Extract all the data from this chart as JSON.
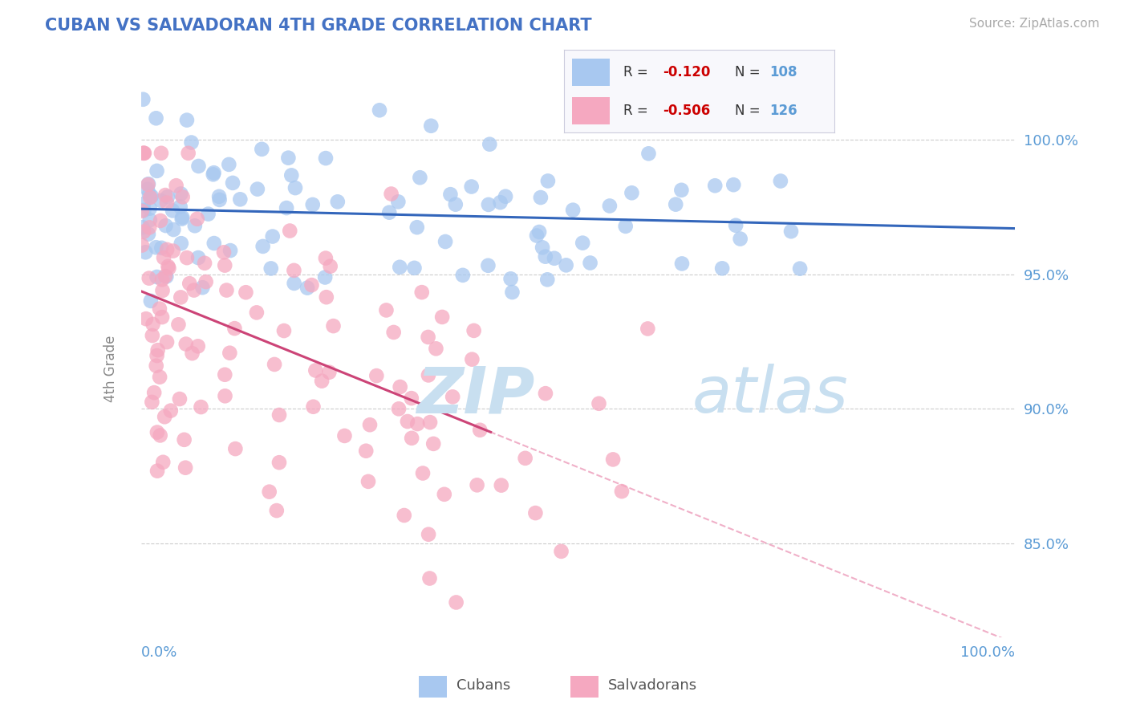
{
  "title": "CUBAN VS SALVADORAN 4TH GRADE CORRELATION CHART",
  "source_text": "Source: ZipAtlas.com",
  "ylabel": "4th Grade",
  "yticks": [
    85.0,
    90.0,
    95.0,
    100.0
  ],
  "ylim": [
    81.5,
    102.0
  ],
  "xlim": [
    0.0,
    100.0
  ],
  "blue_R": -0.12,
  "blue_N": 108,
  "pink_R": -0.506,
  "pink_N": 126,
  "blue_color": "#A8C8F0",
  "pink_color": "#F5A8C0",
  "blue_line_color": "#3366BB",
  "pink_line_color": "#CC4477",
  "dashed_line_color": "#F0B0C8",
  "title_color": "#4472C4",
  "axis_label_color": "#5B9BD5",
  "watermark_color": "#DDECF8",
  "background_color": "#FFFFFF",
  "grid_color": "#CCCCCC",
  "blue_seed": 42,
  "pink_seed": 7
}
